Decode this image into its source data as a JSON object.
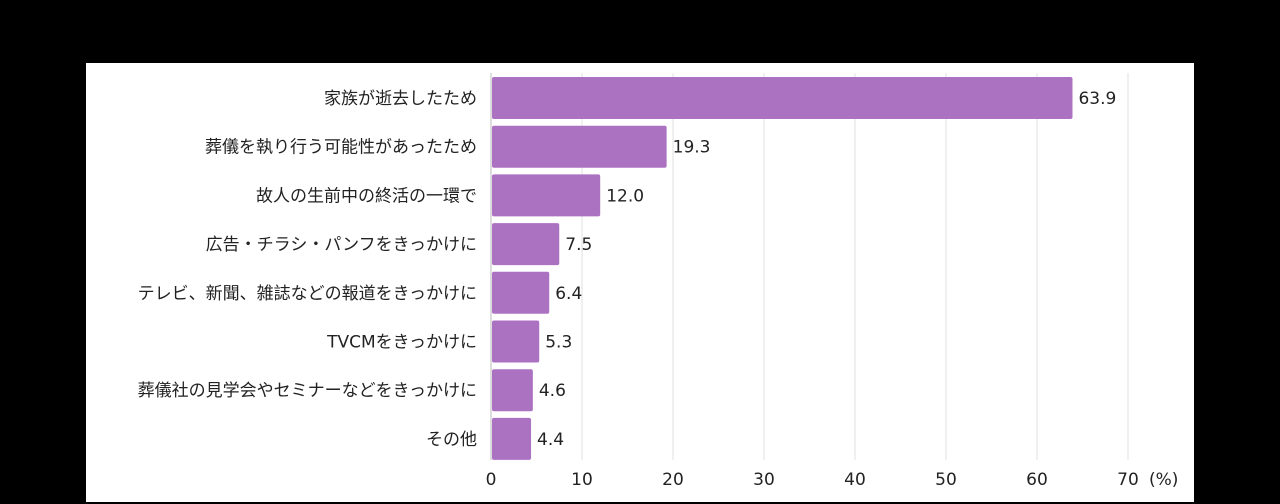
{
  "chart_data": {
    "type": "bar",
    "orientation": "horizontal",
    "categories": [
      "家族が逝去したため",
      "葬儀を執り行う可能性があったため",
      "故人の生前中の終活の一環で",
      "広告・チラシ・パンフをきっかけに",
      "テレビ、新聞、雑誌などの報道をきっかけに",
      "TVCMをきっかけに",
      "葬儀社の見学会やセミナーなどをきっかけに",
      "その他"
    ],
    "values": [
      63.9,
      19.3,
      12.0,
      7.5,
      6.4,
      5.3,
      4.6,
      4.4
    ],
    "value_labels": [
      "63.9",
      "19.3",
      "12.0",
      "7.5",
      "6.4",
      "5.3",
      "4.6",
      "4.4"
    ],
    "xlim": [
      0,
      70
    ],
    "xticks": [
      0,
      10,
      20,
      30,
      40,
      50,
      60,
      70
    ],
    "xtick_labels": [
      "0",
      "10",
      "20",
      "30",
      "40",
      "50",
      "60",
      "70"
    ],
    "unit_label": "(%)",
    "grid": true,
    "bar_color": "#ac72c2",
    "grid_color": "#e2e2e2"
  }
}
